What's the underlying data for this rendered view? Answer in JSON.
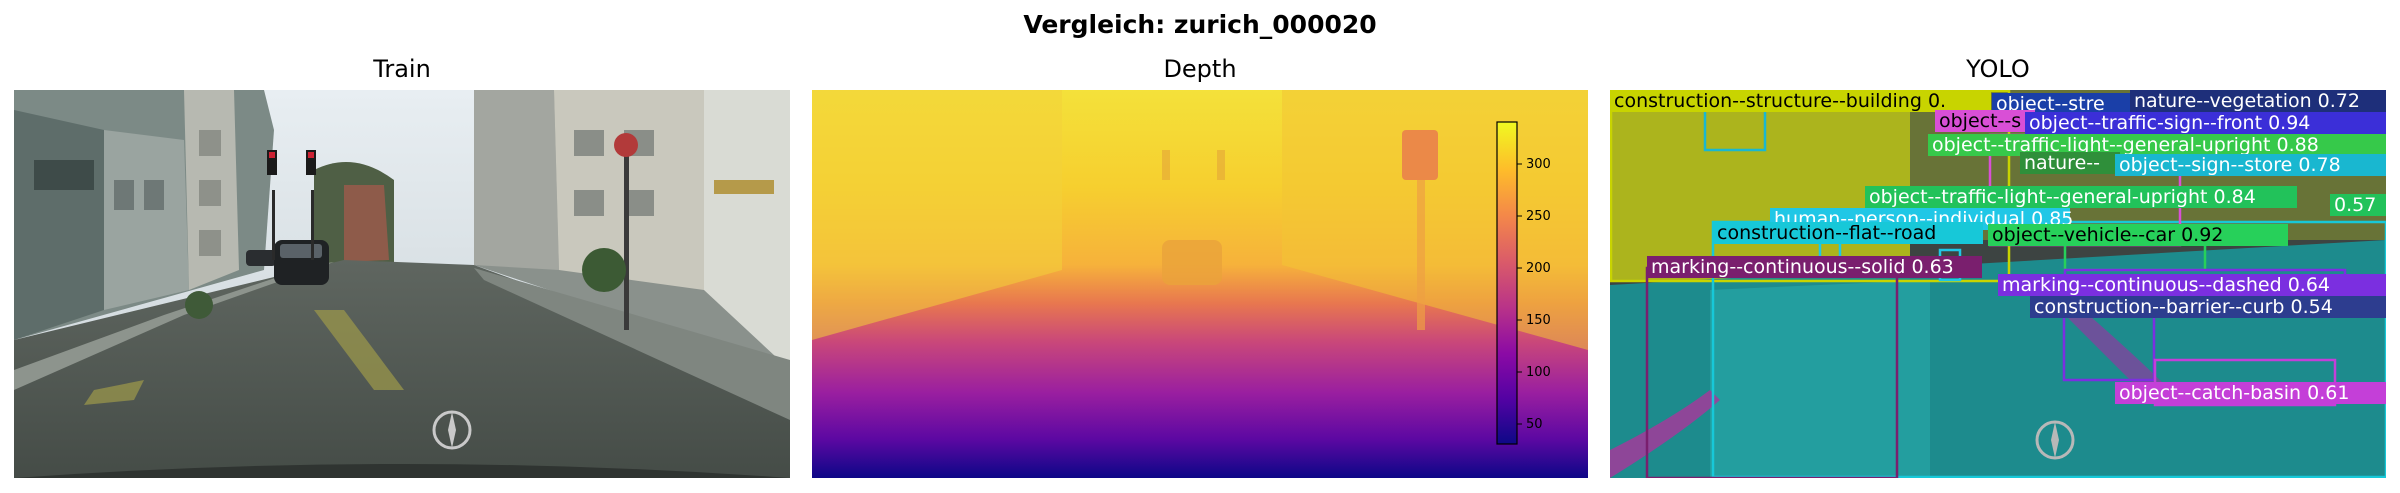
{
  "figure": {
    "title": "Vergleich: zurich_000020"
  },
  "panels": {
    "train": {
      "title": "Train"
    },
    "depth": {
      "title": "Depth",
      "colorbar": {
        "colormap": "plasma",
        "range": [
          30,
          340
        ],
        "ticks": [
          "300",
          "250",
          "200",
          "150",
          "100",
          "50"
        ]
      }
    },
    "yolo": {
      "title": "YOLO",
      "detections": [
        {
          "label": "construction--structure--building 0.",
          "color": "#c8d400"
        },
        {
          "label": "object--stre",
          "color": "#1a3fa8"
        },
        {
          "label": "nature--vegetation 0.72",
          "color": "#1e2f7a"
        },
        {
          "label": "object--s",
          "color": "#d94fd6"
        },
        {
          "label": "object--traffic-sign--front 0.94",
          "color": "#3b2fd8"
        },
        {
          "label": "object--traffic-light--general-upright 0.88",
          "color": "#36c94a"
        },
        {
          "label": "nature--",
          "color": "#2f8f3a"
        },
        {
          "label": "object--sign--store 0.78",
          "color": "#19b7d0"
        },
        {
          "label": "object--traffic-light--general-upright 0.84",
          "color": "#22c25a"
        },
        {
          "label": "0.57",
          "color": "#22c25a"
        },
        {
          "label": "human--person--individual 0.85",
          "color": "#20c7e6"
        },
        {
          "label": "construction--flat--road",
          "color": "#17c8d8"
        },
        {
          "label": "object--vehicle--car 0.92",
          "color": "#27d05a"
        },
        {
          "label": "marking--continuous--solid 0.63",
          "color": "#7a1f6e"
        },
        {
          "label": "marking--continuous--dashed 0.64",
          "color": "#7b2fe0"
        },
        {
          "label": "construction--barrier--curb 0.54",
          "color": "#2d3d8f"
        },
        {
          "label": "object--catch-basin 0.61",
          "color": "#c43fd8"
        }
      ]
    }
  }
}
